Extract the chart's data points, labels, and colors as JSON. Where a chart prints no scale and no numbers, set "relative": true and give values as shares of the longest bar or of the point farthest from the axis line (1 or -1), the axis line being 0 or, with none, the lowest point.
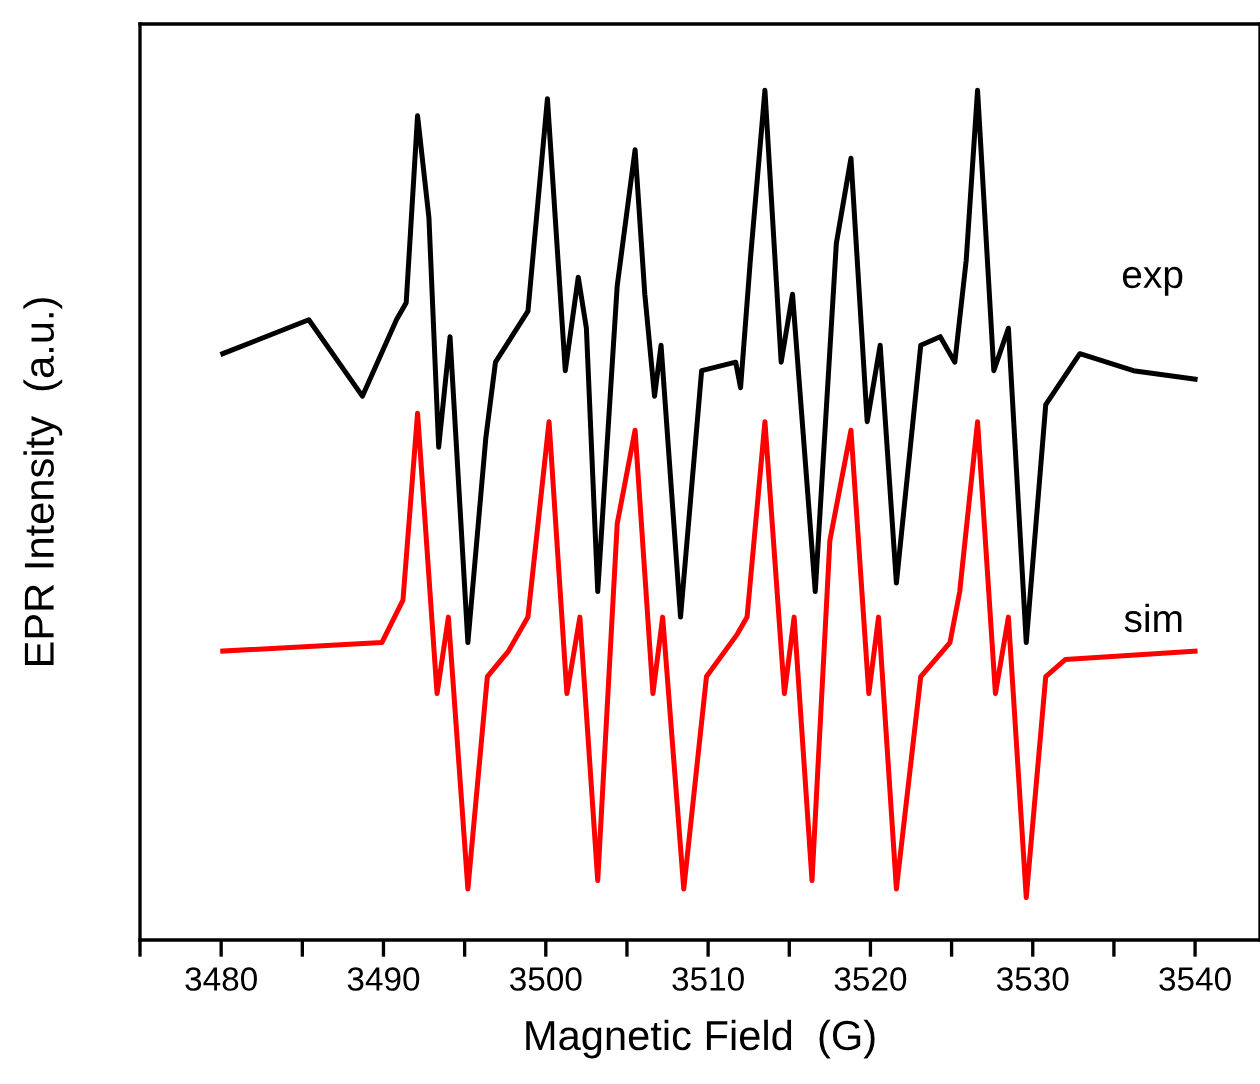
{
  "chart_data": {
    "type": "line",
    "relative": true,
    "xlabel": "Magnetic Field  (G)",
    "ylabel": "EPR Intensity  (a.u.)",
    "xlim": [
      3475,
      3544
    ],
    "xticks": [
      {
        "value": 3475,
        "label": null
      },
      3480,
      {
        "value": 3485,
        "label": null
      },
      3490,
      {
        "value": 3495,
        "label": null
      },
      3500,
      {
        "value": 3505,
        "label": null
      },
      3510,
      {
        "value": 3515,
        "label": null
      },
      3520,
      {
        "value": 3525,
        "label": null
      },
      3530,
      {
        "value": 3535,
        "label": null
      },
      3540
    ],
    "grid": false,
    "legend": false,
    "marker": "none",
    "line_style": "solid",
    "series": [
      {
        "name": "exp",
        "color": "#000000",
        "x": [
          3480.1,
          3485.4,
          3488.7,
          3490.8,
          3491.4,
          3492.1,
          3492.8,
          3493.4,
          3494.1,
          3495.2,
          3496.3,
          3496.9,
          3498.9,
          3500.1,
          3501.2,
          3502.0,
          3502.5,
          3503.2,
          3504.4,
          3505.5,
          3506.1,
          3506.7,
          3507.1,
          3508.3,
          3509.6,
          3511.7,
          3512.0,
          3512.6,
          3513.5,
          3514.5,
          3515.2,
          3516.6,
          3517.9,
          3518.8,
          3519.8,
          3520.6,
          3521.6,
          3523.1,
          3524.3,
          3525.2,
          3525.9,
          3526.6,
          3527.6,
          3528.5,
          3529.6,
          3530.8,
          3532.9,
          3536.2,
          3540
        ],
        "values": [
          0.69,
          0.73,
          0.64,
          0.73,
          0.75,
          0.97,
          0.85,
          0.58,
          0.71,
          0.35,
          0.59,
          0.68,
          0.74,
          0.99,
          0.67,
          0.78,
          0.72,
          0.41,
          0.77,
          0.93,
          0.76,
          0.64,
          0.7,
          0.38,
          0.67,
          0.68,
          0.65,
          0.8,
          1.0,
          0.68,
          0.76,
          0.41,
          0.82,
          0.92,
          0.61,
          0.7,
          0.42,
          0.7,
          0.71,
          0.68,
          0.8,
          1.0,
          0.67,
          0.72,
          0.35,
          0.63,
          0.69,
          0.67,
          0.66
        ]
      },
      {
        "name": "sim",
        "color": "#ff0000",
        "x": [
          3480.1,
          3489.9,
          3491.2,
          3492.1,
          3493.3,
          3494.0,
          3495.2,
          3496.4,
          3497.7,
          3498.9,
          3500.2,
          3501.3,
          3502.1,
          3503.2,
          3504.4,
          3505.5,
          3506.6,
          3507.2,
          3508.5,
          3509.9,
          3511.8,
          3512.4,
          3513.5,
          3514.7,
          3515.3,
          3516.4,
          3517.5,
          3518.8,
          3519.9,
          3520.5,
          3521.6,
          3523.1,
          3524.9,
          3525.5,
          3526.6,
          3527.7,
          3528.5,
          3529.6,
          3530.8,
          3532.0,
          3540
        ],
        "values": [
          0.34,
          0.35,
          0.4,
          0.62,
          0.29,
          0.38,
          0.06,
          0.31,
          0.34,
          0.38,
          0.61,
          0.29,
          0.38,
          0.07,
          0.49,
          0.6,
          0.29,
          0.38,
          0.06,
          0.31,
          0.36,
          0.38,
          0.61,
          0.29,
          0.38,
          0.07,
          0.47,
          0.6,
          0.29,
          0.38,
          0.06,
          0.31,
          0.35,
          0.41,
          0.61,
          0.29,
          0.38,
          0.05,
          0.31,
          0.33,
          0.34
        ]
      }
    ]
  }
}
